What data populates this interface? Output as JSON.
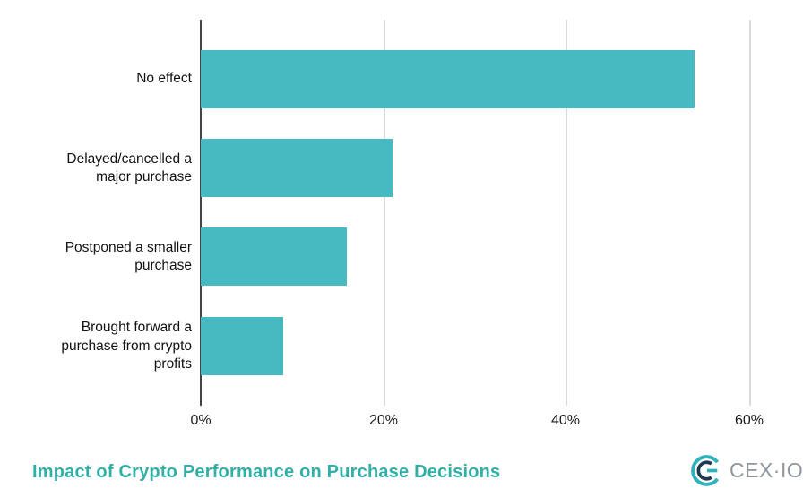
{
  "chart_data": {
    "type": "bar",
    "orientation": "horizontal",
    "title": "Impact of Crypto Performance on Purchase Decisions",
    "categories": [
      "No effect",
      "Delayed/cancelled a major purchase",
      "Postponed a smaller purchase",
      "Brought forward a purchase from crypto profits"
    ],
    "categories_wrapped": [
      "No effect",
      "Delayed/cancelled a\nmajor purchase",
      "Postponed a smaller\npurchase",
      "Brought forward a\npurchase from crypto\nprofits"
    ],
    "values": [
      54,
      21,
      16,
      9
    ],
    "unit": "%",
    "xlabel": "",
    "ylabel": "",
    "x_ticks": [
      "0%",
      "20%",
      "40%",
      "60%"
    ],
    "x_tick_values": [
      0,
      20,
      40,
      60
    ],
    "xlim": [
      0,
      63.7
    ],
    "grid": true,
    "legend": "none",
    "bar_color": "#46b9c3"
  },
  "branding": {
    "logo_text": "CEX·IO",
    "logo_teal": "#2eb3bb",
    "logo_navy": "#1c3a52",
    "logo_text_color": "#8f969c"
  },
  "colors": {
    "bar": "#46b9c3",
    "axis_line": "#424242",
    "gridline": "#d9d9d9",
    "title": "#30afa6",
    "tick_text": "#1a1a1a"
  }
}
